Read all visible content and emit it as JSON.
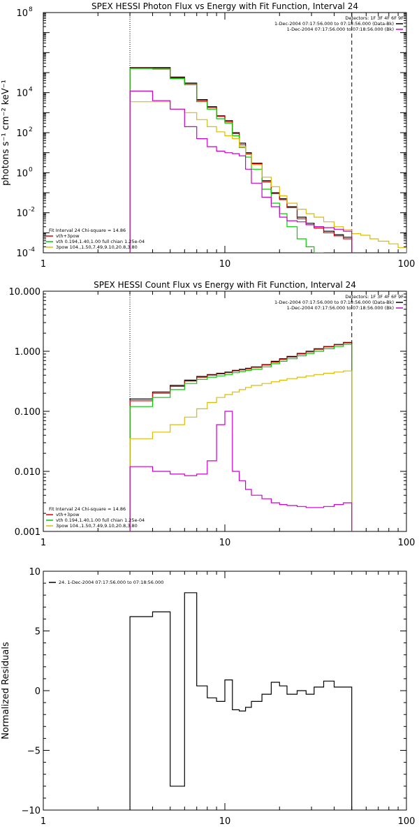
{
  "chart_data": [
    {
      "type": "line",
      "title": "SPEX HESSI Photon Flux vs Energy with Fit Function, Interval 24",
      "xlabel": "",
      "ylabel": "photons s⁻¹ cm⁻² keV⁻¹",
      "xscale": "log",
      "yscale": "log",
      "xlim": [
        1,
        100
      ],
      "ylim": [
        0.0001,
        100000000
      ],
      "x_ticks": [
        {
          "v": 1,
          "label": "1"
        },
        {
          "v": 10,
          "label": "10"
        },
        {
          "v": 100,
          "label": "100"
        }
      ],
      "y_ticks": [
        {
          "v": 0.0001,
          "base": "10",
          "exp": "-4"
        },
        {
          "v": 0.01,
          "base": "10",
          "exp": "-2"
        },
        {
          "v": 1,
          "base": "10",
          "exp": "0"
        },
        {
          "v": 100,
          "base": "10",
          "exp": "2"
        },
        {
          "v": 10000,
          "base": "10",
          "exp": "4"
        },
        {
          "v": 100000000,
          "base": "10",
          "exp": "8"
        }
      ],
      "vlines": [
        {
          "x": 3,
          "style": "dotted"
        },
        {
          "x": 50,
          "style": "dashed"
        }
      ],
      "legend_topright": [
        {
          "text": "Detectors: 1F 3F 4F 6F 9F",
          "color": "#000000",
          "swatch": false
        },
        {
          "text": "1-Dec-2004 07:17:56.000 to 07:18:56.000 (Data-Bk)",
          "color": "#000000",
          "swatch": true
        },
        {
          "text": "1-Dec-2004 07:17:56.000 to 07:18:56.000 (Bk)",
          "color": "#cc00cc",
          "swatch": true
        }
      ],
      "legend_bottomleft": [
        {
          "text": "Fit Interval 24   Chi-square = 14.86",
          "color": "#000000",
          "swatch": false
        },
        {
          "text": "vth+3pow",
          "color": "#dd0000",
          "swatch": true
        },
        {
          "text": "vth 0.194,1.40,1.00  full chian 1.25e-04",
          "color": "#00cc00",
          "swatch": true
        },
        {
          "text": "3pow 104.,1.50,7.49,9.10,20.8,3.80",
          "color": "#ddbb00",
          "swatch": true
        }
      ],
      "edges": [
        3,
        4,
        5,
        6,
        7,
        8,
        9,
        10,
        11,
        12,
        13,
        14,
        16,
        18,
        20,
        22,
        25,
        28,
        31,
        35,
        40,
        45,
        50
      ],
      "edges_ext": [
        3,
        4,
        5,
        6,
        7,
        8,
        9,
        10,
        11,
        12,
        13,
        14,
        16,
        18,
        20,
        22,
        25,
        28,
        31,
        35,
        40,
        45,
        50,
        56,
        63,
        70,
        80,
        90,
        100
      ],
      "series": [
        {
          "color": "#000000",
          "edges": "edges",
          "values": [
            180000,
            180000,
            60000,
            30000,
            4500,
            2000,
            700,
            400,
            100,
            30,
            10,
            3,
            0.4,
            0.1,
            0.05,
            0.02,
            0.006,
            0.003,
            0.002,
            0.0012,
            0.0008,
            0.0006
          ]
        },
        {
          "color": "#dd0000",
          "edges": "edges",
          "values": [
            170000,
            165000,
            55000,
            28000,
            4000,
            1800,
            650,
            350,
            90,
            25,
            9,
            2.8,
            0.35,
            0.09,
            0.045,
            0.018,
            0.005,
            0.0025,
            0.0017,
            0.001,
            0.0007,
            0.0005
          ]
        },
        {
          "color": "#00cc00",
          "edges": "edges",
          "values": [
            160000,
            150000,
            50000,
            25000,
            3500,
            1500,
            500,
            300,
            70,
            18,
            6,
            1.5,
            0.15,
            0.03,
            0.009,
            0.002,
            0.0005,
            0.0002,
            5e-05
          ]
        },
        {
          "color": "#ddbb00",
          "edges": "edges_ext",
          "values": [
            3500,
            3500,
            1500,
            1000,
            450,
            200,
            110,
            70,
            50,
            20,
            8,
            2.5,
            0.6,
            0.2,
            0.07,
            0.03,
            0.015,
            0.009,
            0.006,
            0.0035,
            0.002,
            0.0014,
            0.0009,
            0.00075,
            0.0005,
            0.00038,
            0.00028,
            0.00018
          ]
        },
        {
          "color": "#cc00cc",
          "edges": "edges",
          "values": [
            12000,
            4000,
            1500,
            200,
            50,
            20,
            12,
            10,
            9,
            7,
            1.5,
            0.3,
            0.06,
            0.02,
            0.006,
            0.004,
            0.0035,
            0.0025,
            0.002,
            0.0018,
            0.0015,
            0.0012
          ]
        }
      ]
    },
    {
      "type": "line",
      "title": "SPEX HESSI Count Flux vs Energy with Fit Function, Interval 24",
      "xlabel": "",
      "ylabel": "",
      "xscale": "log",
      "yscale": "log",
      "xlim": [
        1,
        100
      ],
      "ylim": [
        0.001,
        10
      ],
      "x_ticks": [
        {
          "v": 1,
          "label": "1"
        },
        {
          "v": 10,
          "label": "10"
        },
        {
          "v": 100,
          "label": "100"
        }
      ],
      "y_ticks": [
        {
          "v": 0.001,
          "label": "0.001"
        },
        {
          "v": 0.01,
          "label": "0.010"
        },
        {
          "v": 0.1,
          "label": "0.100"
        },
        {
          "v": 1,
          "label": "1.000"
        },
        {
          "v": 10,
          "label": "10.000"
        }
      ],
      "vlines": [
        {
          "x": 3,
          "style": "dotted"
        },
        {
          "x": 50,
          "style": "dashed"
        }
      ],
      "legend_topright": [
        {
          "text": "Detectors: 1F 3F 4F 6F 9F",
          "color": "#000000",
          "swatch": false
        },
        {
          "text": "1-Dec-2004 07:17:56.000 to 07:18:56.000 (Data-Bk)",
          "color": "#000000",
          "swatch": true
        },
        {
          "text": "1-Dec-2004 07:17:56.000 to 07:18:56.000 (Bk)",
          "color": "#cc00cc",
          "swatch": true
        }
      ],
      "legend_bottomleft": [
        {
          "text": "Fit Interval 24   Chi-square = 14.86",
          "color": "#000000",
          "swatch": false
        },
        {
          "text": "vth+3pow",
          "color": "#dd0000",
          "swatch": true
        },
        {
          "text": "vth 0.194,1.40,1.00  full chian 1.25e-04",
          "color": "#00cc00",
          "swatch": true
        },
        {
          "text": "3pow 104.,1.50,7.49,9.10,20.8,3.80",
          "color": "#ddbb00",
          "swatch": true
        }
      ],
      "edges": [
        3,
        4,
        5,
        6,
        7,
        8,
        9,
        10,
        11,
        12,
        13,
        14,
        16,
        18,
        20,
        22,
        25,
        28,
        31,
        35,
        40,
        45,
        50
      ],
      "series": [
        {
          "color": "#000000",
          "edges": "edges",
          "values": [
            0.16,
            0.21,
            0.27,
            0.33,
            0.38,
            0.41,
            0.43,
            0.45,
            0.48,
            0.5,
            0.52,
            0.55,
            0.6,
            0.68,
            0.75,
            0.82,
            0.92,
            1.0,
            1.1,
            1.2,
            1.3,
            1.4
          ]
        },
        {
          "color": "#dd0000",
          "edges": "edges",
          "values": [
            0.15,
            0.2,
            0.26,
            0.32,
            0.37,
            0.4,
            0.42,
            0.44,
            0.47,
            0.49,
            0.51,
            0.54,
            0.59,
            0.66,
            0.73,
            0.8,
            0.9,
            0.98,
            1.08,
            1.18,
            1.28,
            1.38
          ]
        },
        {
          "color": "#00cc00",
          "edges": "edges",
          "values": [
            0.12,
            0.17,
            0.23,
            0.29,
            0.34,
            0.37,
            0.39,
            0.41,
            0.44,
            0.46,
            0.48,
            0.5,
            0.55,
            0.62,
            0.68,
            0.75,
            0.84,
            0.92,
            1.0,
            1.1,
            1.2,
            1.3
          ]
        },
        {
          "color": "#ddbb00",
          "edges": "edges",
          "values": [
            0.035,
            0.045,
            0.06,
            0.08,
            0.11,
            0.14,
            0.17,
            0.19,
            0.21,
            0.23,
            0.25,
            0.27,
            0.29,
            0.31,
            0.33,
            0.35,
            0.37,
            0.39,
            0.41,
            0.43,
            0.45,
            0.47
          ]
        },
        {
          "color": "#cc00cc",
          "edges": "edges",
          "values": [
            0.012,
            0.01,
            0.009,
            0.0085,
            0.009,
            0.015,
            0.06,
            0.1,
            0.01,
            0.007,
            0.005,
            0.004,
            0.0035,
            0.003,
            0.0028,
            0.0027,
            0.0026,
            0.0025,
            0.0025,
            0.0026,
            0.0028,
            0.003
          ]
        }
      ]
    },
    {
      "type": "line",
      "title": "",
      "xlabel": "",
      "ylabel": "Normalized Residuals",
      "xscale": "log",
      "yscale": "linear",
      "xlim": [
        1,
        100
      ],
      "ylim": [
        -10,
        10
      ],
      "x_ticks": [
        {
          "v": 1,
          "label": "1"
        },
        {
          "v": 10,
          "label": "10"
        },
        {
          "v": 100,
          "label": "100"
        }
      ],
      "y_ticks": [
        {
          "v": -10,
          "label": "−10"
        },
        {
          "v": -5,
          "label": "−5"
        },
        {
          "v": 0,
          "label": "0"
        },
        {
          "v": 5,
          "label": "5"
        },
        {
          "v": 10,
          "label": "10"
        }
      ],
      "vlines": [],
      "legend_topleft": [
        {
          "text": "24.  1-Dec-2004 07:17:56.000 to 07:18:56.000",
          "color": "#000000",
          "swatch": true
        }
      ],
      "edges": [
        3,
        4,
        5,
        6,
        7,
        8,
        9,
        10,
        11,
        12,
        13,
        14,
        16,
        18,
        20,
        22,
        25,
        28,
        31,
        35,
        40,
        45,
        50
      ],
      "series": [
        {
          "color": "#000000",
          "edges": "edges",
          "drop_to": -10,
          "values": [
            6.2,
            6.6,
            -8.0,
            8.2,
            0.4,
            -0.6,
            -0.9,
            0.9,
            -1.6,
            -1.7,
            -1.4,
            -0.9,
            -0.3,
            0.7,
            0.4,
            -0.3,
            0.0,
            -0.3,
            0.3,
            0.8,
            0.3,
            0.3
          ]
        }
      ]
    }
  ]
}
